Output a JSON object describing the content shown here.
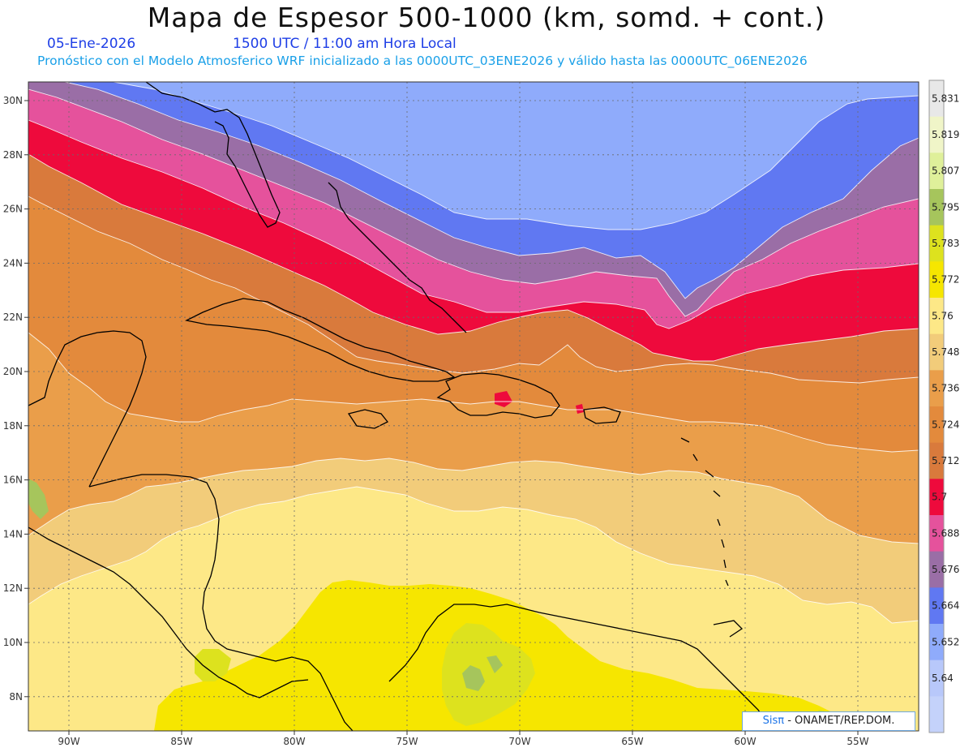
{
  "header": {
    "title": "Mapa de Espesor 500-1000 (km, somd. + cont.)",
    "date": "05-Ene-2026",
    "time": "1500 UTC / 11:00 am Hora Local",
    "forecast": "Pronóstico con el Modelo Atmosferico WRF inicializado a las 0000UTC_03ENE2026 y válido hasta las  0000UTC_06ENE2026"
  },
  "map": {
    "lat_ticks": [
      "30N",
      "28N",
      "26N",
      "24N",
      "22N",
      "20N",
      "18N",
      "16N",
      "14N",
      "12N",
      "10N",
      "8N"
    ],
    "lon_ticks": [
      "90W",
      "85W",
      "80W",
      "75W",
      "70W",
      "65W",
      "60W",
      "55W"
    ],
    "colors": {
      "c5640": "#b8c8fa",
      "c5652": "#8fabfb",
      "c5664": "#6078f2",
      "c5676": "#9a6ea6",
      "c5688": "#e5529c",
      "c5700": "#ee0a3c",
      "c5712": "#d97a3c",
      "c5724": "#e38a3c",
      "c5736": "#ea9e4a",
      "c5748": "#f2cc7a",
      "c5760": "#fde887",
      "c5772": "#f6e600",
      "c5783": "#dde21e",
      "c5795": "#a6c55c"
    }
  },
  "colorbar": {
    "labels": [
      "5.831",
      "5.819",
      "5.807",
      "5.795",
      "5.783",
      "5.772",
      "5.76",
      "5.748",
      "5.736",
      "5.724",
      "5.712",
      "5.7",
      "5.688",
      "5.676",
      "5.664",
      "5.652",
      "5.64"
    ],
    "colors": [
      "#e8e8e8",
      "#f0f5c8",
      "#dff09a",
      "#a6c55c",
      "#dde21e",
      "#f6e600",
      "#fde887",
      "#f2cc7a",
      "#ea9e4a",
      "#e38a3c",
      "#d97a3c",
      "#ee0a3c",
      "#e5529c",
      "#9a6ea6",
      "#6078f2",
      "#8fabfb",
      "#b8c8fa",
      "#c4d2fa"
    ]
  },
  "credit": {
    "brand": "Sisπ",
    "text": " - ONAMET/REP.DOM."
  }
}
